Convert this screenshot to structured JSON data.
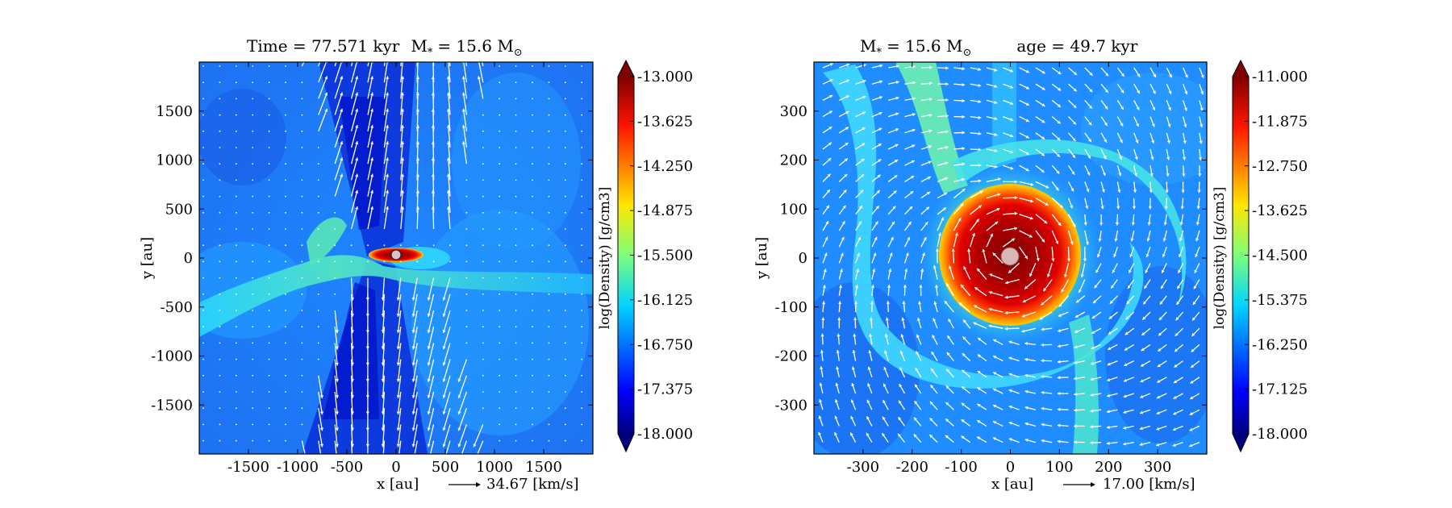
{
  "chart_data": [
    {
      "type": "heatmap",
      "title_parts": [
        "Time = 77.571 kyr",
        "M",
        "*",
        "= 15.6 M",
        "⊙"
      ],
      "xlabel": "x [au]",
      "ylabel": "y [au]",
      "xlim": [
        -2000,
        2000
      ],
      "ylim": [
        -2000,
        2000
      ],
      "xticks": [
        -1500,
        -1000,
        -500,
        0,
        500,
        1000,
        1500
      ],
      "yticks": [
        1500,
        1000,
        500,
        0,
        -500,
        -1000,
        -1500
      ],
      "xtick_labels": [
        "-1500",
        "-1000",
        "-500",
        "0",
        "500",
        "1000",
        "1500"
      ],
      "ytick_labels": [
        "1500",
        "1000",
        "500",
        "0",
        "-500",
        "-1000",
        "-1500"
      ],
      "vector_key": "34.67 [km/s]",
      "colorbar": {
        "label": "log(Density) [g/cm3]",
        "min": -18.0,
        "max": -13.0,
        "ticks": [
          "-13.000",
          "-13.625",
          "-14.250",
          "-14.875",
          "-15.500",
          "-16.125",
          "-16.750",
          "-17.375",
          "-18.000"
        ]
      }
    },
    {
      "type": "heatmap",
      "title_parts": [
        "M",
        "*",
        "= 15.6 M",
        "⊙",
        "age = 49.7 kyr"
      ],
      "xlabel": "x [au]",
      "ylabel": "y [au]",
      "xlim": [
        -400,
        400
      ],
      "ylim": [
        -400,
        400
      ],
      "xticks": [
        -300,
        -200,
        -100,
        0,
        100,
        200,
        300
      ],
      "yticks": [
        300,
        200,
        100,
        0,
        -100,
        -200,
        -300
      ],
      "xtick_labels": [
        "-300",
        "-200",
        "-100",
        "0",
        "100",
        "200",
        "300"
      ],
      "ytick_labels": [
        "300",
        "200",
        "100",
        "0",
        "-100",
        "-200",
        "-300"
      ],
      "vector_key": "17.00 [km/s]",
      "colorbar": {
        "label": "log(Density) [g/cm3]",
        "min": -18.0,
        "max": -11.0,
        "ticks": [
          "-11.000",
          "-11.875",
          "-12.750",
          "-13.625",
          "-14.500",
          "-15.375",
          "-16.250",
          "-17.125",
          "-18.000"
        ]
      }
    }
  ]
}
